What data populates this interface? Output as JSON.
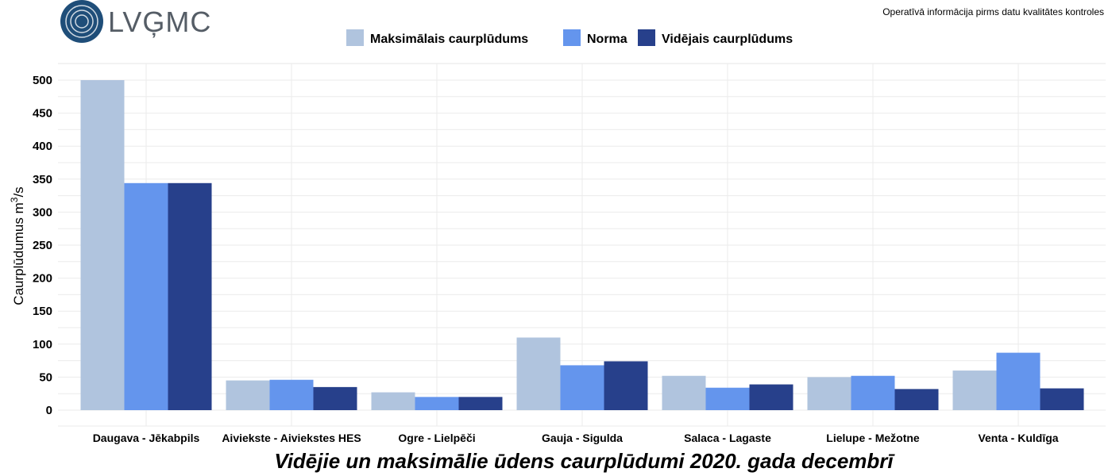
{
  "logo": {
    "text": "LVĢMC"
  },
  "note": "Operatīvā informācija pirms datu kvalitātes kontroles",
  "chart_data": {
    "type": "bar",
    "title": "Vidējie un maksimālie ūdens caurplūdumi 2020. gada decembrī",
    "xlabel": "",
    "ylabel": {
      "main": "Caurplūdumus  m",
      "sup": "3",
      "unit": "/s"
    },
    "ylim": [
      0,
      500
    ],
    "yticks": [
      0,
      50,
      100,
      150,
      200,
      250,
      300,
      350,
      400,
      450,
      500
    ],
    "grid": true,
    "legend_position": "top-center",
    "categories": [
      "Daugava - Jēkabpils",
      "Aiviekste - Aiviekstes HES",
      "Ogre - Lielpēči",
      "Gauja - Sigulda",
      "Salaca - Lagaste",
      "Lielupe - Mežotne",
      "Venta - Kuldīga"
    ],
    "series": [
      {
        "name": "Maksimālais caurplūdums",
        "color": "#b0c4de",
        "values": [
          500,
          45,
          27,
          110,
          52,
          50,
          60
        ]
      },
      {
        "name": "Norma",
        "color": "#6495ed",
        "values": [
          344,
          46,
          20,
          68,
          34,
          52,
          87
        ]
      },
      {
        "name": "Vidējais caurplūdums",
        "color": "#27408b",
        "values": [
          344,
          35,
          20,
          74,
          39,
          32,
          33
        ]
      }
    ]
  }
}
